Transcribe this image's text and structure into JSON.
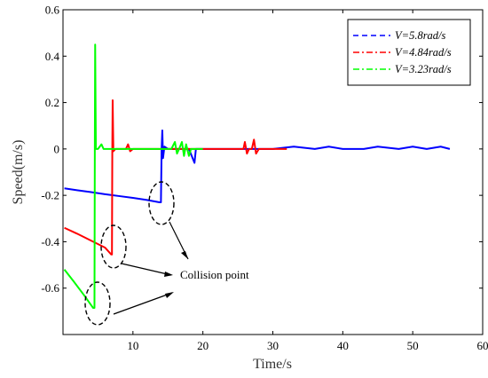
{
  "chart_data": {
    "type": "line",
    "xlabel": "Time/s",
    "ylabel": "Speed(m/s)",
    "xlim": [
      0,
      60
    ],
    "ylim": [
      -0.8,
      0.6
    ],
    "x_ticks": [
      10,
      20,
      30,
      40,
      50,
      60
    ],
    "y_ticks": [
      -0.6,
      -0.4,
      -0.2,
      0,
      0.2,
      0.4,
      0.6
    ],
    "grid": false,
    "legend_position": "top-right",
    "series": [
      {
        "name": "V=5.8rad/s",
        "color": "#0000ff",
        "points": [
          [
            0.2,
            -0.17
          ],
          [
            2,
            -0.178
          ],
          [
            4,
            -0.186
          ],
          [
            6,
            -0.195
          ],
          [
            8,
            -0.203
          ],
          [
            10,
            -0.211
          ],
          [
            12,
            -0.22
          ],
          [
            13.8,
            -0.23
          ],
          [
            14.0,
            -0.23
          ],
          [
            14.1,
            0.0
          ],
          [
            14.2,
            0.08
          ],
          [
            14.3,
            -0.04
          ],
          [
            14.5,
            0.01
          ],
          [
            15,
            0.0
          ],
          [
            16,
            0.0
          ],
          [
            17,
            0.0
          ],
          [
            18,
            0.0
          ],
          [
            18.8,
            -0.06
          ],
          [
            19,
            0.0
          ],
          [
            22,
            0.0
          ],
          [
            25,
            0.0
          ],
          [
            28,
            0.0
          ],
          [
            30,
            0.0
          ],
          [
            33,
            0.01
          ],
          [
            36,
            0.0
          ],
          [
            38,
            0.01
          ],
          [
            40,
            0.0
          ],
          [
            43,
            0.0
          ],
          [
            45,
            0.01
          ],
          [
            48,
            0.0
          ],
          [
            50,
            0.01
          ],
          [
            52,
            0.0
          ],
          [
            54,
            0.01
          ],
          [
            55.3,
            0.0
          ]
        ]
      },
      {
        "name": "V=4.84rad/s",
        "color": "#ff0000",
        "points": [
          [
            0.2,
            -0.34
          ],
          [
            2,
            -0.365
          ],
          [
            4,
            -0.395
          ],
          [
            6,
            -0.425
          ],
          [
            6.9,
            -0.455
          ],
          [
            7.0,
            -0.455
          ],
          [
            7.05,
            0.0
          ],
          [
            7.1,
            0.21
          ],
          [
            7.2,
            -0.01
          ],
          [
            7.5,
            0.0
          ],
          [
            9,
            0.0
          ],
          [
            9.3,
            0.02
          ],
          [
            9.6,
            -0.01
          ],
          [
            10,
            0.0
          ],
          [
            12,
            0.0
          ],
          [
            14,
            0.0
          ],
          [
            16,
            0.0
          ],
          [
            18,
            0.0
          ],
          [
            20,
            0.0
          ],
          [
            22,
            0.0
          ],
          [
            24,
            0.0
          ],
          [
            25.8,
            0.0
          ],
          [
            26,
            0.03
          ],
          [
            26.3,
            -0.02
          ],
          [
            26.6,
            0.0
          ],
          [
            27,
            0.0
          ],
          [
            27.3,
            0.04
          ],
          [
            27.6,
            -0.02
          ],
          [
            28,
            0.0
          ],
          [
            30,
            0.0
          ],
          [
            32,
            0.0
          ]
        ]
      },
      {
        "name": "V=3.23rad/s",
        "color": "#00ff00",
        "points": [
          [
            0.2,
            -0.52
          ],
          [
            1.5,
            -0.57
          ],
          [
            3,
            -0.63
          ],
          [
            4.3,
            -0.685
          ],
          [
            4.5,
            -0.685
          ],
          [
            4.55,
            0.0
          ],
          [
            4.6,
            0.45
          ],
          [
            4.7,
            0.0
          ],
          [
            5,
            0.0
          ],
          [
            5.5,
            0.02
          ],
          [
            5.8,
            0.0
          ],
          [
            8,
            0.0
          ],
          [
            10,
            0.0
          ],
          [
            12,
            0.0
          ],
          [
            14,
            0.0
          ],
          [
            15.5,
            0.0
          ],
          [
            16,
            0.03
          ],
          [
            16.3,
            -0.02
          ],
          [
            16.6,
            0.0
          ],
          [
            17,
            0.03
          ],
          [
            17.3,
            -0.03
          ],
          [
            17.6,
            0.02
          ],
          [
            18,
            -0.03
          ],
          [
            18.3,
            0.0
          ],
          [
            19,
            0.0
          ],
          [
            20,
            0.0
          ]
        ]
      }
    ],
    "annotation": "Collision point"
  }
}
